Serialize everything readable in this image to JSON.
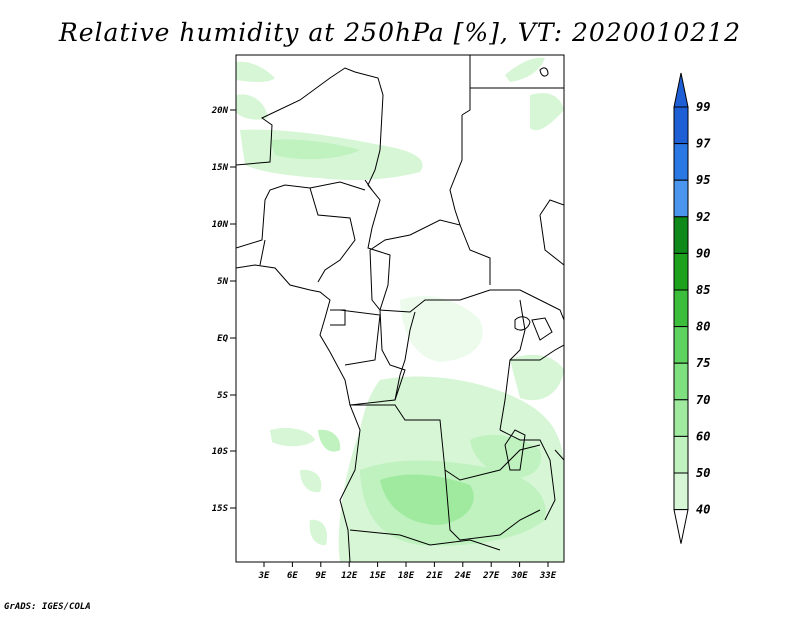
{
  "title": "Relative humidity at 250hPa [%], VT: 2020010212",
  "credit": "GrADS: IGES/COLA",
  "map": {
    "lat_labels": [
      "20N",
      "15N",
      "10N",
      "5N",
      "EQ",
      "5S",
      "10S",
      "15S"
    ],
    "lon_labels": [
      "3E",
      "6E",
      "9E",
      "12E",
      "15E",
      "18E",
      "21E",
      "24E",
      "27E",
      "30E",
      "33E"
    ]
  },
  "colorbar": {
    "labels": [
      "99",
      "97",
      "95",
      "92",
      "90",
      "85",
      "80",
      "75",
      "70",
      "60",
      "50",
      "40"
    ],
    "colors": {
      "99": "#1e5fd6",
      "97": "#2a78e4",
      "95": "#4a96ee",
      "92": "#0f8a1a",
      "90": "#1ea21e",
      "85": "#3cbe3c",
      "80": "#5fd35f",
      "75": "#7fe07f",
      "70": "#a0eaa0",
      "60": "#bff2bf",
      "50": "#d6f6d6",
      "40": "#ecfbec"
    }
  }
}
